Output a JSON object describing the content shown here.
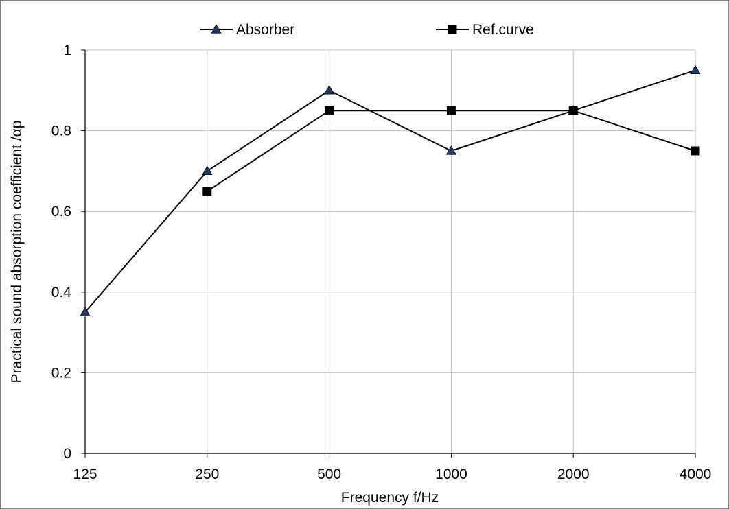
{
  "chart_data": {
    "type": "line",
    "categories": [
      "125",
      "250",
      "500",
      "1000",
      "2000",
      "4000"
    ],
    "series": [
      {
        "name": "Absorber",
        "marker": "triangle",
        "line_color": "#000000",
        "marker_color": "#1f3864",
        "values": [
          0.35,
          0.7,
          0.9,
          0.75,
          0.85,
          0.95
        ]
      },
      {
        "name": "Ref.curve",
        "marker": "square",
        "line_color": "#000000",
        "marker_color": "#000000",
        "values": [
          null,
          0.65,
          0.85,
          0.85,
          0.85,
          0.75
        ]
      }
    ],
    "xlabel": "Frequency  f/Hz",
    "ylabel": "Practical sound absorption coefficient /αp",
    "ylim": [
      0,
      1
    ],
    "yticks": [
      0,
      0.2,
      0.4,
      0.6,
      0.8,
      1
    ],
    "ytick_labels": [
      "0",
      "0.2",
      "0.4",
      "0.6",
      "0.8",
      "1"
    ],
    "grid": true,
    "legend_position": "top-center"
  }
}
